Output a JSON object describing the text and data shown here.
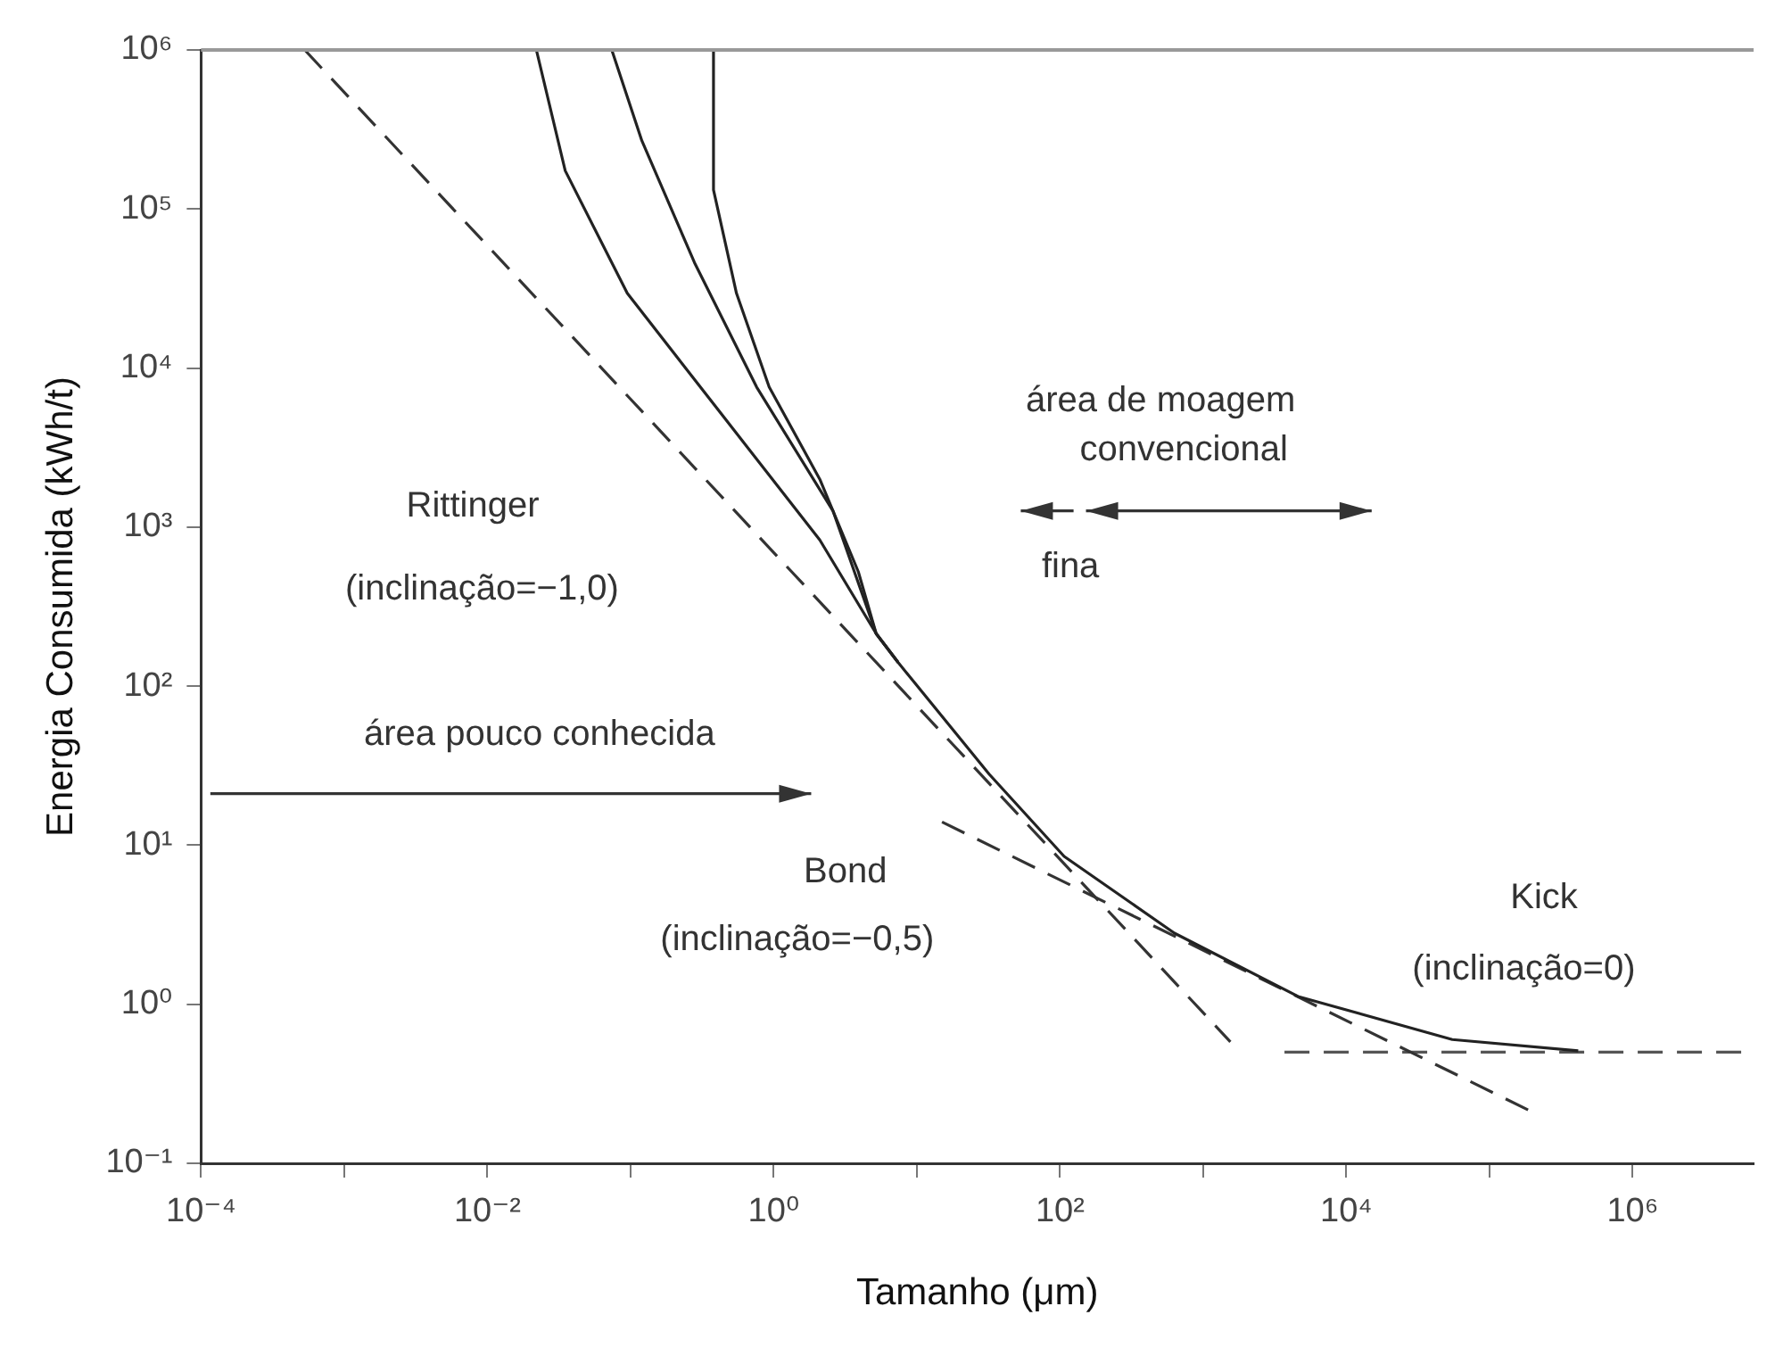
{
  "chart_data": {
    "type": "line",
    "xlabel": "Tamanho (μm)",
    "ylabel": "Energia Consumida (kWh/t)",
    "log": "xy",
    "marker": "none",
    "xlim": [
      0.0001,
      7000000
    ],
    "ylim": [
      0.1,
      1000000
    ],
    "xticks": [
      {
        "value": 0.0001,
        "label": "10⁻⁴"
      },
      {
        "value": 0.001,
        "label": null
      },
      {
        "value": 0.01,
        "label": "10⁻²"
      },
      {
        "value": 0.1,
        "label": null
      },
      {
        "value": 1,
        "label": "10⁰"
      },
      {
        "value": 10,
        "label": null
      },
      {
        "value": 100,
        "label": "10²"
      },
      {
        "value": 1000,
        "label": null
      },
      {
        "value": 10000,
        "label": "10⁴"
      },
      {
        "value": 100000,
        "label": null
      },
      {
        "value": 1000000,
        "label": "10⁶"
      }
    ],
    "yticks": [
      {
        "value": 0.1,
        "label": "10⁻¹"
      },
      {
        "value": 1,
        "label": "10⁰"
      },
      {
        "value": 10,
        "label": "10¹"
      },
      {
        "value": 100,
        "label": "10²"
      },
      {
        "value": 1000,
        "label": "10³"
      },
      {
        "value": 10000,
        "label": "10⁴"
      },
      {
        "value": 100000,
        "label": "10⁵"
      },
      {
        "value": 1000000,
        "label": "10⁶"
      }
    ],
    "series": [
      {
        "color": "#222222",
        "line_style": "solid",
        "x": [
          0.022,
          0.035,
          0.095,
          0.45,
          2.1,
          5.2,
          7.4
        ],
        "values": [
          1000000,
          174000,
          29500,
          4900,
          830,
          214,
          141
        ]
      },
      {
        "color": "#222222",
        "line_style": "solid",
        "x": [
          0.074,
          0.12,
          0.28,
          0.76,
          2.6,
          5.2,
          7.4
        ],
        "values": [
          1000000,
          269000,
          46000,
          7600,
          1260,
          214,
          141
        ]
      },
      {
        "color": "#222222",
        "line_style": "solid",
        "x": [
          0.38,
          0.38,
          0.55,
          0.93,
          2.1,
          3.9,
          5.2,
          7.4,
          32,
          107,
          630,
          4600,
          55000,
          417000
        ],
        "values": [
          1000000,
          132000,
          29500,
          7600,
          2000,
          525,
          214,
          141,
          28,
          8.5,
          2.8,
          1.12,
          0.6,
          0.51
        ]
      },
      {
        "color": "#333333",
        "line_style": "dashed",
        "x": [
          0.00053,
          1550
        ],
        "values": [
          1000000,
          0.58
        ]
      },
      {
        "color": "#333333",
        "line_style": "dashed",
        "x": [
          15,
          200000
        ],
        "values": [
          14,
          0.21
        ]
      },
      {
        "color": "#555555",
        "line_style": "dashed",
        "x": [
          3700,
          7000000
        ],
        "values": [
          0.5,
          0.5
        ]
      }
    ],
    "annotations": [
      "Rittinger",
      "(inclinação=−1,0)",
      "área pouco conhecida",
      "Bond",
      "(inclinação=−0,5)",
      "Kick",
      "(inclinação=0)",
      "área de moagem",
      "convencional",
      "fina"
    ]
  }
}
